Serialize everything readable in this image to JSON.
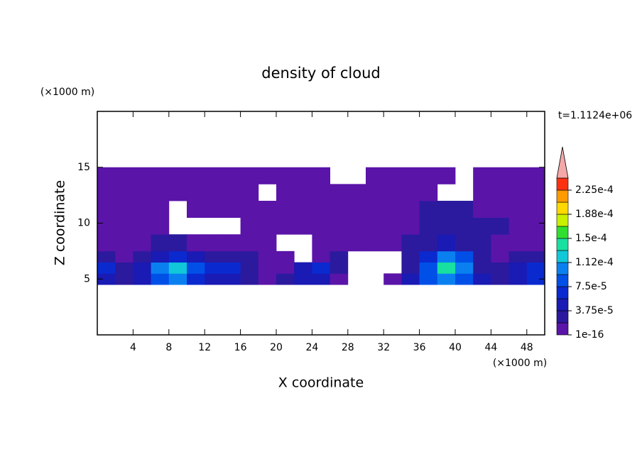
{
  "chart_data": {
    "type": "contour",
    "title": "density of cloud",
    "x_label": "X coordinate",
    "y_label": "Z coordinate",
    "x_unit": "(×1000 m)",
    "y_unit": "(×1000 m)",
    "annotation": "t=1.1124e+06",
    "xlim": [
      0,
      50
    ],
    "ylim": [
      0,
      20
    ],
    "xticks": [
      4,
      8,
      12,
      16,
      20,
      24,
      28,
      32,
      36,
      40,
      44,
      48
    ],
    "yticks": [
      5,
      10,
      15
    ],
    "x_edges": [
      0,
      2,
      4,
      6,
      8,
      10,
      12,
      14,
      16,
      18,
      20,
      22,
      24,
      26,
      28,
      30,
      32,
      34,
      36,
      38,
      40,
      42,
      44,
      46,
      48,
      50
    ],
    "y_edges": [
      4.5,
      5.5,
      6.5,
      7.5,
      9,
      10.5,
      12,
      13.5,
      15
    ],
    "z": [
      [
        4.5e-05,
        2.5e-05,
        4.5e-05,
        8.5e-05,
        0.000105,
        6.5e-05,
        4.5e-05,
        4.5e-05,
        2.5e-05,
        1e-05,
        2.5e-05,
        4.5e-05,
        4.5e-05,
        1e-05,
        null,
        null,
        1e-05,
        4.5e-05,
        8.5e-05,
        0.000105,
        8.5e-05,
        4.5e-05,
        2.5e-05,
        4.5e-05,
        6.5e-05
      ],
      [
        6.5e-05,
        2.5e-05,
        4.5e-05,
        0.000105,
        0.00012,
        8.5e-05,
        6.5e-05,
        6.5e-05,
        2.5e-05,
        1e-05,
        1e-05,
        4.5e-05,
        6.5e-05,
        2.5e-05,
        null,
        null,
        null,
        2.5e-05,
        8.5e-05,
        0.00014,
        0.000105,
        2.5e-05,
        2.5e-05,
        4.5e-05,
        6.5e-05
      ],
      [
        2.5e-05,
        1e-05,
        2.5e-05,
        4.5e-05,
        6.5e-05,
        4.5e-05,
        2.5e-05,
        2.5e-05,
        2.5e-05,
        1e-05,
        1e-05,
        null,
        1e-05,
        2.5e-05,
        null,
        null,
        null,
        2.5e-05,
        6.5e-05,
        0.000105,
        8.5e-05,
        2.5e-05,
        1e-05,
        2.5e-05,
        2.5e-05
      ],
      [
        1e-05,
        1e-05,
        1e-05,
        2.5e-05,
        2.5e-05,
        1e-05,
        1e-05,
        1e-05,
        1e-05,
        1e-05,
        null,
        null,
        1e-05,
        1e-05,
        1e-05,
        1e-05,
        1e-05,
        2.5e-05,
        2.5e-05,
        4.5e-05,
        2.5e-05,
        2.5e-05,
        1e-05,
        1e-05,
        1e-05
      ],
      [
        1e-05,
        1e-05,
        1e-05,
        1e-05,
        null,
        null,
        null,
        null,
        1e-05,
        1e-05,
        1e-05,
        1e-05,
        1e-05,
        1e-05,
        1e-05,
        1e-05,
        1e-05,
        1e-05,
        2.5e-05,
        2.5e-05,
        2.5e-05,
        2.5e-05,
        2.5e-05,
        1e-05,
        1e-05
      ],
      [
        1e-05,
        1e-05,
        1e-05,
        1e-05,
        null,
        1e-05,
        1e-05,
        1e-05,
        1e-05,
        1e-05,
        1e-05,
        1e-05,
        1e-05,
        1e-05,
        1e-05,
        1e-05,
        1e-05,
        1e-05,
        2.5e-05,
        2.5e-05,
        2.5e-05,
        1e-05,
        1e-05,
        1e-05,
        1e-05
      ],
      [
        1e-05,
        1e-05,
        1e-05,
        1e-05,
        1e-05,
        1e-05,
        1e-05,
        1e-05,
        1e-05,
        null,
        1e-05,
        1e-05,
        1e-05,
        1e-05,
        1e-05,
        1e-05,
        1e-05,
        1e-05,
        1e-05,
        null,
        null,
        1e-05,
        1e-05,
        1e-05,
        1e-05
      ],
      [
        1e-05,
        1e-05,
        1e-05,
        1e-05,
        1e-05,
        1e-05,
        1e-05,
        1e-05,
        1e-05,
        1e-05,
        1e-05,
        1e-05,
        1e-05,
        null,
        null,
        1e-05,
        1e-05,
        1e-05,
        1e-05,
        1e-05,
        null,
        1e-05,
        1e-05,
        1e-05,
        1e-05
      ]
    ],
    "colorbar": {
      "levels": [
        1e-16,
        1.875e-05,
        3.75e-05,
        5.625e-05,
        7.5e-05,
        9.375e-05,
        0.0001125,
        0.00013125,
        0.00015,
        0.00016875,
        0.0001875,
        0.00020625,
        0.000225,
        0.00024375
      ],
      "colors": [
        "#5a14a8",
        "#2b1a9e",
        "#1a1ab4",
        "#0a2ad0",
        "#0050e8",
        "#0a80f0",
        "#10c8d8",
        "#18e0a0",
        "#30e030",
        "#c8f000",
        "#ffd800",
        "#ff9a00",
        "#ff3010"
      ],
      "extend_color": "#f4a8a8",
      "ticks": [
        {
          "value": 1e-16,
          "label": "1e-16"
        },
        {
          "value": 3.75e-05,
          "label": "3.75e-5"
        },
        {
          "value": 7.5e-05,
          "label": "7.5e-5"
        },
        {
          "value": 0.0001125,
          "label": "1.12e-4"
        },
        {
          "value": 0.00015,
          "label": "1.5e-4"
        },
        {
          "value": 0.0001875,
          "label": "1.88e-4"
        },
        {
          "value": 0.000225,
          "label": "2.25e-4"
        }
      ]
    }
  }
}
